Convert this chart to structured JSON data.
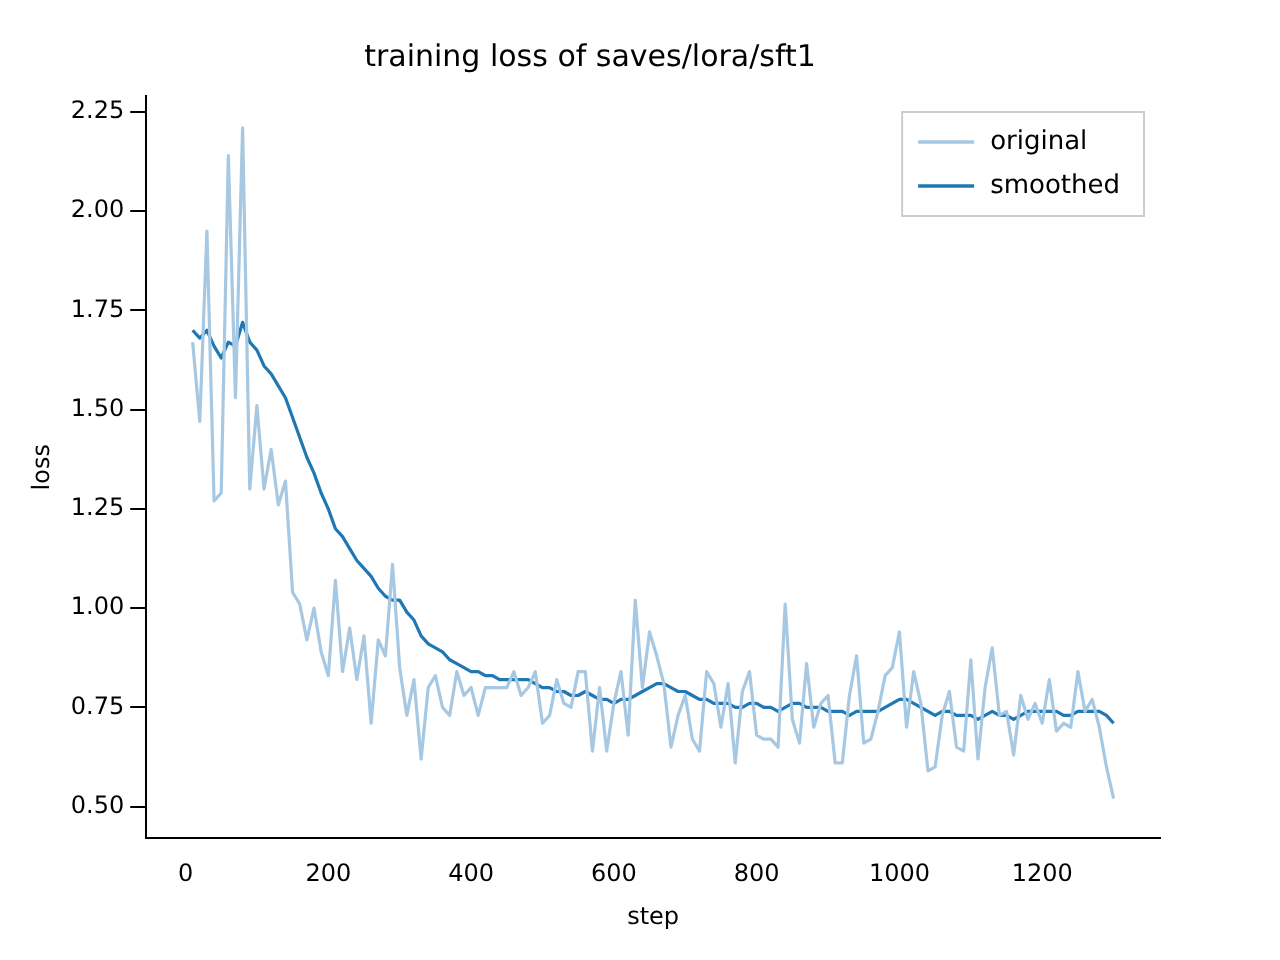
{
  "chart_data": {
    "type": "line",
    "title": "training loss of saves/lora/sft1",
    "xlabel": "step",
    "ylabel": "loss",
    "x": [
      10,
      20,
      30,
      40,
      50,
      60,
      70,
      80,
      90,
      100,
      110,
      120,
      130,
      140,
      150,
      160,
      170,
      180,
      190,
      200,
      210,
      220,
      230,
      240,
      250,
      260,
      270,
      280,
      290,
      300,
      310,
      320,
      330,
      340,
      350,
      360,
      370,
      380,
      390,
      400,
      410,
      420,
      430,
      440,
      450,
      460,
      470,
      480,
      490,
      500,
      510,
      520,
      530,
      540,
      550,
      560,
      570,
      580,
      590,
      600,
      610,
      620,
      630,
      640,
      650,
      660,
      670,
      680,
      690,
      700,
      710,
      720,
      730,
      740,
      750,
      760,
      770,
      780,
      790,
      800,
      810,
      820,
      830,
      840,
      850,
      860,
      870,
      880,
      890,
      900,
      910,
      920,
      930,
      940,
      950,
      960,
      970,
      980,
      990,
      1000,
      1010,
      1020,
      1030,
      1040,
      1050,
      1060,
      1070,
      1080,
      1090,
      1100,
      1110,
      1120,
      1130,
      1140,
      1150,
      1160,
      1170,
      1180,
      1190,
      1200,
      1210,
      1220,
      1230,
      1240,
      1250,
      1260,
      1270,
      1280,
      1290,
      1300
    ],
    "series": [
      {
        "name": "original",
        "color": "#a6c8e2",
        "values": [
          1.67,
          1.47,
          1.95,
          1.27,
          1.29,
          2.14,
          1.53,
          2.21,
          1.3,
          1.51,
          1.3,
          1.4,
          1.26,
          1.32,
          1.04,
          1.01,
          0.92,
          1.0,
          0.89,
          0.83,
          1.07,
          0.84,
          0.95,
          0.82,
          0.93,
          0.71,
          0.92,
          0.88,
          1.11,
          0.85,
          0.73,
          0.82,
          0.62,
          0.8,
          0.83,
          0.75,
          0.73,
          0.84,
          0.78,
          0.8,
          0.73,
          0.8,
          0.8,
          0.8,
          0.8,
          0.84,
          0.78,
          0.8,
          0.84,
          0.71,
          0.73,
          0.82,
          0.76,
          0.75,
          0.84,
          0.84,
          0.64,
          0.8,
          0.64,
          0.76,
          0.84,
          0.68,
          1.02,
          0.8,
          0.94,
          0.88,
          0.81,
          0.65,
          0.73,
          0.78,
          0.67,
          0.64,
          0.84,
          0.81,
          0.7,
          0.81,
          0.61,
          0.79,
          0.84,
          0.68,
          0.67,
          0.67,
          0.65,
          1.01,
          0.72,
          0.66,
          0.86,
          0.7,
          0.76,
          0.78,
          0.61,
          0.61,
          0.78,
          0.88,
          0.66,
          0.67,
          0.74,
          0.83,
          0.85,
          0.94,
          0.7,
          0.84,
          0.76,
          0.59,
          0.6,
          0.73,
          0.79,
          0.65,
          0.64,
          0.87,
          0.62,
          0.8,
          0.9,
          0.73,
          0.74,
          0.63,
          0.78,
          0.72,
          0.76,
          0.71,
          0.82,
          0.69,
          0.71,
          0.7,
          0.84,
          0.74,
          0.77,
          0.7,
          0.6,
          0.52
        ]
      },
      {
        "name": "smoothed",
        "color": "#1f77b4",
        "values": [
          1.7,
          1.68,
          1.7,
          1.66,
          1.63,
          1.67,
          1.66,
          1.72,
          1.67,
          1.65,
          1.61,
          1.59,
          1.56,
          1.53,
          1.48,
          1.43,
          1.38,
          1.34,
          1.29,
          1.25,
          1.2,
          1.18,
          1.15,
          1.12,
          1.1,
          1.08,
          1.05,
          1.03,
          1.02,
          1.02,
          0.99,
          0.97,
          0.93,
          0.91,
          0.9,
          0.89,
          0.87,
          0.86,
          0.85,
          0.84,
          0.84,
          0.83,
          0.83,
          0.82,
          0.82,
          0.82,
          0.82,
          0.82,
          0.81,
          0.8,
          0.8,
          0.79,
          0.79,
          0.78,
          0.78,
          0.79,
          0.78,
          0.77,
          0.77,
          0.76,
          0.77,
          0.77,
          0.78,
          0.79,
          0.8,
          0.81,
          0.81,
          0.8,
          0.79,
          0.79,
          0.78,
          0.77,
          0.77,
          0.76,
          0.76,
          0.76,
          0.75,
          0.75,
          0.76,
          0.76,
          0.75,
          0.75,
          0.74,
          0.75,
          0.76,
          0.76,
          0.75,
          0.75,
          0.75,
          0.74,
          0.74,
          0.74,
          0.73,
          0.74,
          0.74,
          0.74,
          0.74,
          0.75,
          0.76,
          0.77,
          0.77,
          0.76,
          0.75,
          0.74,
          0.73,
          0.74,
          0.74,
          0.73,
          0.73,
          0.73,
          0.72,
          0.73,
          0.74,
          0.73,
          0.73,
          0.72,
          0.73,
          0.74,
          0.74,
          0.74,
          0.74,
          0.74,
          0.73,
          0.73,
          0.74,
          0.74,
          0.74,
          0.74,
          0.73,
          0.71
        ]
      }
    ],
    "xlim": [
      -55,
      1365
    ],
    "xticks": [
      0,
      200,
      400,
      600,
      800,
      1000,
      1200
    ],
    "ylim": [
      0.42,
      2.29
    ],
    "yticks": [
      {
        "value": 0.5,
        "label": "0.50"
      },
      {
        "value": 0.75,
        "label": "0.75"
      },
      {
        "value": 1.0,
        "label": "1.00"
      },
      {
        "value": 1.25,
        "label": "1.25"
      },
      {
        "value": 1.5,
        "label": "1.50"
      },
      {
        "value": 1.75,
        "label": "1.75"
      },
      {
        "value": 2.0,
        "label": "2.00"
      },
      {
        "value": 2.25,
        "label": "2.25"
      }
    ],
    "grid": false,
    "legend": "top right",
    "marker": "none",
    "line_style": "solid"
  }
}
